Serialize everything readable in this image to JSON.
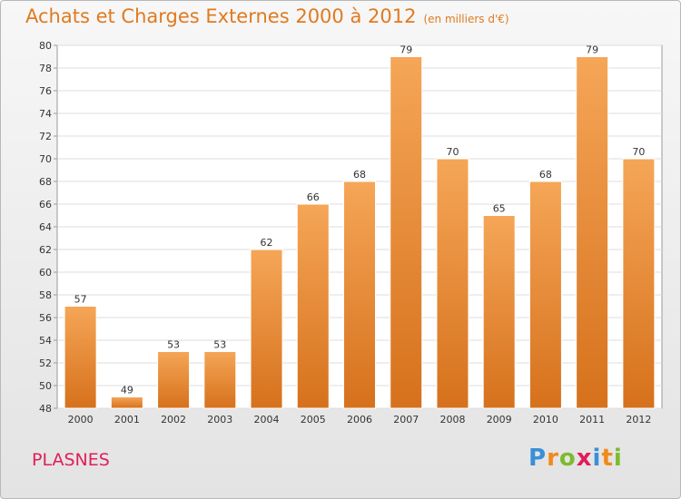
{
  "title": "Achats et Charges Externes 2000 à 2012",
  "subtitle": "(en milliers d'€)",
  "commune": "PLASNES",
  "logo": {
    "text": "Proxiti",
    "letters": [
      "P",
      "r",
      "o",
      "x",
      "i",
      "t",
      "i"
    ],
    "colors": [
      "#3a8fd8",
      "#f08a1c",
      "#7dbb2e",
      "#e01e5a",
      "#3a8fd8",
      "#f08a1c",
      "#7dbb2e"
    ]
  },
  "colors": {
    "bar_top": "#f5a657",
    "bar_bottom": "#d6711c",
    "title": "#e07a1f",
    "commune": "#e01e5a"
  },
  "chart_data": {
    "type": "bar",
    "title": "Achats et Charges Externes 2000 à 2012",
    "subtitle": "(en milliers d'€)",
    "xlabel": "",
    "ylabel": "",
    "ylim": [
      48,
      80
    ],
    "yticks": [
      48,
      50,
      52,
      54,
      56,
      58,
      60,
      62,
      64,
      66,
      68,
      70,
      72,
      74,
      76,
      78,
      80
    ],
    "grid": true,
    "categories": [
      "2000",
      "2001",
      "2002",
      "2003",
      "2004",
      "2005",
      "2006",
      "2007",
      "2008",
      "2009",
      "2010",
      "2011",
      "2012"
    ],
    "values": [
      57,
      49,
      53,
      53,
      62,
      66,
      68,
      79,
      70,
      65,
      68,
      79,
      70
    ]
  }
}
